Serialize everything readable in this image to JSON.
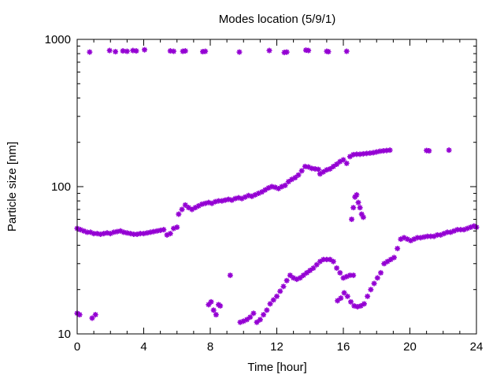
{
  "chart_data": {
    "type": "scatter",
    "title": "Modes location (5/9/1)",
    "xlabel": "Time [hour]",
    "ylabel": "Particle size [nm]",
    "xlim": [
      0,
      24
    ],
    "ylim": [
      10,
      1000
    ],
    "yscale": "log",
    "grid": false,
    "marker_color": "#9400d3",
    "xticks": [
      0,
      4,
      8,
      12,
      16,
      20,
      24
    ],
    "yticks": [
      10,
      100,
      1000
    ],
    "series": [
      {
        "points": [
          [
            0.75,
            820
          ],
          [
            1.95,
            840
          ],
          [
            2.3,
            825
          ],
          [
            2.75,
            835
          ],
          [
            3.0,
            830
          ],
          [
            3.35,
            840
          ],
          [
            3.55,
            835
          ],
          [
            4.05,
            850
          ],
          [
            5.6,
            835
          ],
          [
            5.8,
            830
          ],
          [
            6.35,
            830
          ],
          [
            6.5,
            835
          ],
          [
            7.55,
            825
          ],
          [
            7.7,
            830
          ],
          [
            9.75,
            820
          ],
          [
            11.55,
            840
          ],
          [
            12.45,
            815
          ],
          [
            12.6,
            820
          ],
          [
            13.75,
            845
          ],
          [
            13.9,
            840
          ],
          [
            15.0,
            830
          ],
          [
            15.1,
            825
          ],
          [
            16.2,
            830
          ],
          [
            0.0,
            52
          ],
          [
            0.2,
            51
          ],
          [
            0.4,
            50
          ],
          [
            0.6,
            49
          ],
          [
            0.8,
            49
          ],
          [
            1.0,
            48
          ],
          [
            1.2,
            48
          ],
          [
            1.4,
            47.5
          ],
          [
            1.6,
            48
          ],
          [
            1.8,
            48.5
          ],
          [
            2.0,
            48
          ],
          [
            2.2,
            49
          ],
          [
            2.4,
            49.5
          ],
          [
            2.6,
            50
          ],
          [
            2.8,
            49
          ],
          [
            3.0,
            48.5
          ],
          [
            3.2,
            48
          ],
          [
            3.4,
            47.5
          ],
          [
            3.6,
            47.5
          ],
          [
            3.8,
            48
          ],
          [
            4.0,
            48
          ],
          [
            4.2,
            48.5
          ],
          [
            4.4,
            49
          ],
          [
            4.6,
            49.5
          ],
          [
            4.8,
            50
          ],
          [
            5.0,
            50.5
          ],
          [
            5.2,
            51
          ],
          [
            5.4,
            47
          ],
          [
            5.6,
            48
          ],
          [
            5.8,
            52
          ],
          [
            6.0,
            53
          ],
          [
            6.1,
            65
          ],
          [
            6.3,
            70
          ],
          [
            6.5,
            75
          ],
          [
            6.7,
            72
          ],
          [
            6.9,
            70
          ],
          [
            7.1,
            72
          ],
          [
            7.3,
            74
          ],
          [
            7.5,
            76
          ],
          [
            7.7,
            77
          ],
          [
            7.9,
            78
          ],
          [
            8.1,
            77
          ],
          [
            8.3,
            79
          ],
          [
            8.5,
            80
          ],
          [
            8.7,
            80
          ],
          [
            8.9,
            81
          ],
          [
            9.1,
            82
          ],
          [
            9.3,
            81
          ],
          [
            9.5,
            83
          ],
          [
            9.7,
            84
          ],
          [
            9.9,
            83
          ],
          [
            10.1,
            85
          ],
          [
            10.3,
            87
          ],
          [
            10.5,
            86
          ],
          [
            10.7,
            88
          ],
          [
            10.9,
            90
          ],
          [
            11.1,
            92
          ],
          [
            11.3,
            95
          ],
          [
            11.5,
            98
          ],
          [
            11.7,
            100
          ],
          [
            11.9,
            99
          ],
          [
            12.1,
            97
          ],
          [
            12.3,
            100
          ],
          [
            12.5,
            102
          ],
          [
            12.7,
            108
          ],
          [
            12.9,
            112
          ],
          [
            13.1,
            115
          ],
          [
            13.3,
            120
          ],
          [
            13.5,
            128
          ],
          [
            13.7,
            137
          ],
          [
            13.9,
            136
          ],
          [
            14.1,
            133
          ],
          [
            14.3,
            132
          ],
          [
            14.5,
            131
          ],
          [
            14.6,
            122
          ],
          [
            14.8,
            126
          ],
          [
            15.0,
            130
          ],
          [
            15.2,
            132
          ],
          [
            15.4,
            137
          ],
          [
            15.6,
            142
          ],
          [
            15.8,
            148
          ],
          [
            16.0,
            152
          ],
          [
            16.2,
            144
          ],
          [
            16.4,
            160
          ],
          [
            16.6,
            165
          ],
          [
            16.8,
            166
          ],
          [
            17.0,
            166
          ],
          [
            17.2,
            167
          ],
          [
            17.4,
            168
          ],
          [
            17.6,
            169
          ],
          [
            17.8,
            170
          ],
          [
            18.0,
            172
          ],
          [
            18.2,
            174
          ],
          [
            18.4,
            175
          ],
          [
            18.6,
            176
          ],
          [
            18.8,
            177
          ],
          [
            21.0,
            176
          ],
          [
            21.15,
            175
          ],
          [
            22.35,
            177
          ],
          [
            16.5,
            60
          ],
          [
            16.6,
            72
          ],
          [
            16.7,
            85
          ],
          [
            16.8,
            88
          ],
          [
            16.9,
            78
          ],
          [
            17.0,
            72
          ],
          [
            17.1,
            65
          ],
          [
            17.2,
            62
          ],
          [
            0.0,
            13.8
          ],
          [
            0.15,
            13.5
          ],
          [
            0.9,
            12.8
          ],
          [
            1.1,
            13.5
          ],
          [
            9.2,
            25
          ],
          [
            7.9,
            15.8
          ],
          [
            8.05,
            16.5
          ],
          [
            8.2,
            14.5
          ],
          [
            8.35,
            13.5
          ],
          [
            8.5,
            15.8
          ],
          [
            8.6,
            15.5
          ],
          [
            9.8,
            12
          ],
          [
            10.0,
            12.2
          ],
          [
            10.2,
            12.5
          ],
          [
            10.4,
            13
          ],
          [
            10.6,
            13.8
          ],
          [
            10.8,
            12
          ],
          [
            11.0,
            12.5
          ],
          [
            11.2,
            13.5
          ],
          [
            11.4,
            14.5
          ],
          [
            11.6,
            16
          ],
          [
            11.8,
            17
          ],
          [
            12.0,
            18
          ],
          [
            12.2,
            19.5
          ],
          [
            12.4,
            21
          ],
          [
            12.6,
            23
          ],
          [
            12.8,
            25
          ],
          [
            13.0,
            24
          ],
          [
            13.2,
            23.5
          ],
          [
            13.4,
            24
          ],
          [
            13.6,
            25
          ],
          [
            13.8,
            26
          ],
          [
            14.0,
            27
          ],
          [
            14.2,
            28
          ],
          [
            14.4,
            29.5
          ],
          [
            14.6,
            31
          ],
          [
            14.8,
            32
          ],
          [
            15.0,
            32
          ],
          [
            15.2,
            32
          ],
          [
            15.4,
            31
          ],
          [
            15.6,
            28
          ],
          [
            15.8,
            26
          ],
          [
            16.0,
            24
          ],
          [
            16.2,
            24.5
          ],
          [
            16.4,
            25
          ],
          [
            16.6,
            25
          ],
          [
            15.65,
            16.8
          ],
          [
            15.85,
            17.5
          ],
          [
            16.05,
            19
          ],
          [
            16.25,
            18
          ],
          [
            16.45,
            16.5
          ],
          [
            16.65,
            15.5
          ],
          [
            16.85,
            15.3
          ],
          [
            17.05,
            15.5
          ],
          [
            17.25,
            16
          ],
          [
            17.45,
            18
          ],
          [
            17.65,
            20
          ],
          [
            17.85,
            22
          ],
          [
            18.05,
            24
          ],
          [
            18.25,
            26
          ],
          [
            18.45,
            30
          ],
          [
            18.65,
            31
          ],
          [
            18.85,
            32
          ],
          [
            19.05,
            33
          ],
          [
            19.25,
            38
          ],
          [
            19.45,
            44
          ],
          [
            19.65,
            45
          ],
          [
            19.85,
            44
          ],
          [
            20.05,
            43
          ],
          [
            20.25,
            44
          ],
          [
            20.45,
            45
          ],
          [
            20.65,
            45
          ],
          [
            20.85,
            45.5
          ],
          [
            21.05,
            46
          ],
          [
            21.25,
            46
          ],
          [
            21.45,
            46
          ],
          [
            21.65,
            47
          ],
          [
            21.85,
            47
          ],
          [
            22.05,
            48
          ],
          [
            22.25,
            49
          ],
          [
            22.45,
            49
          ],
          [
            22.65,
            50
          ],
          [
            22.85,
            51
          ],
          [
            23.05,
            51
          ],
          [
            23.25,
            51
          ],
          [
            23.45,
            52
          ],
          [
            23.65,
            53
          ],
          [
            23.85,
            54
          ],
          [
            24.0,
            53
          ]
        ]
      }
    ]
  }
}
